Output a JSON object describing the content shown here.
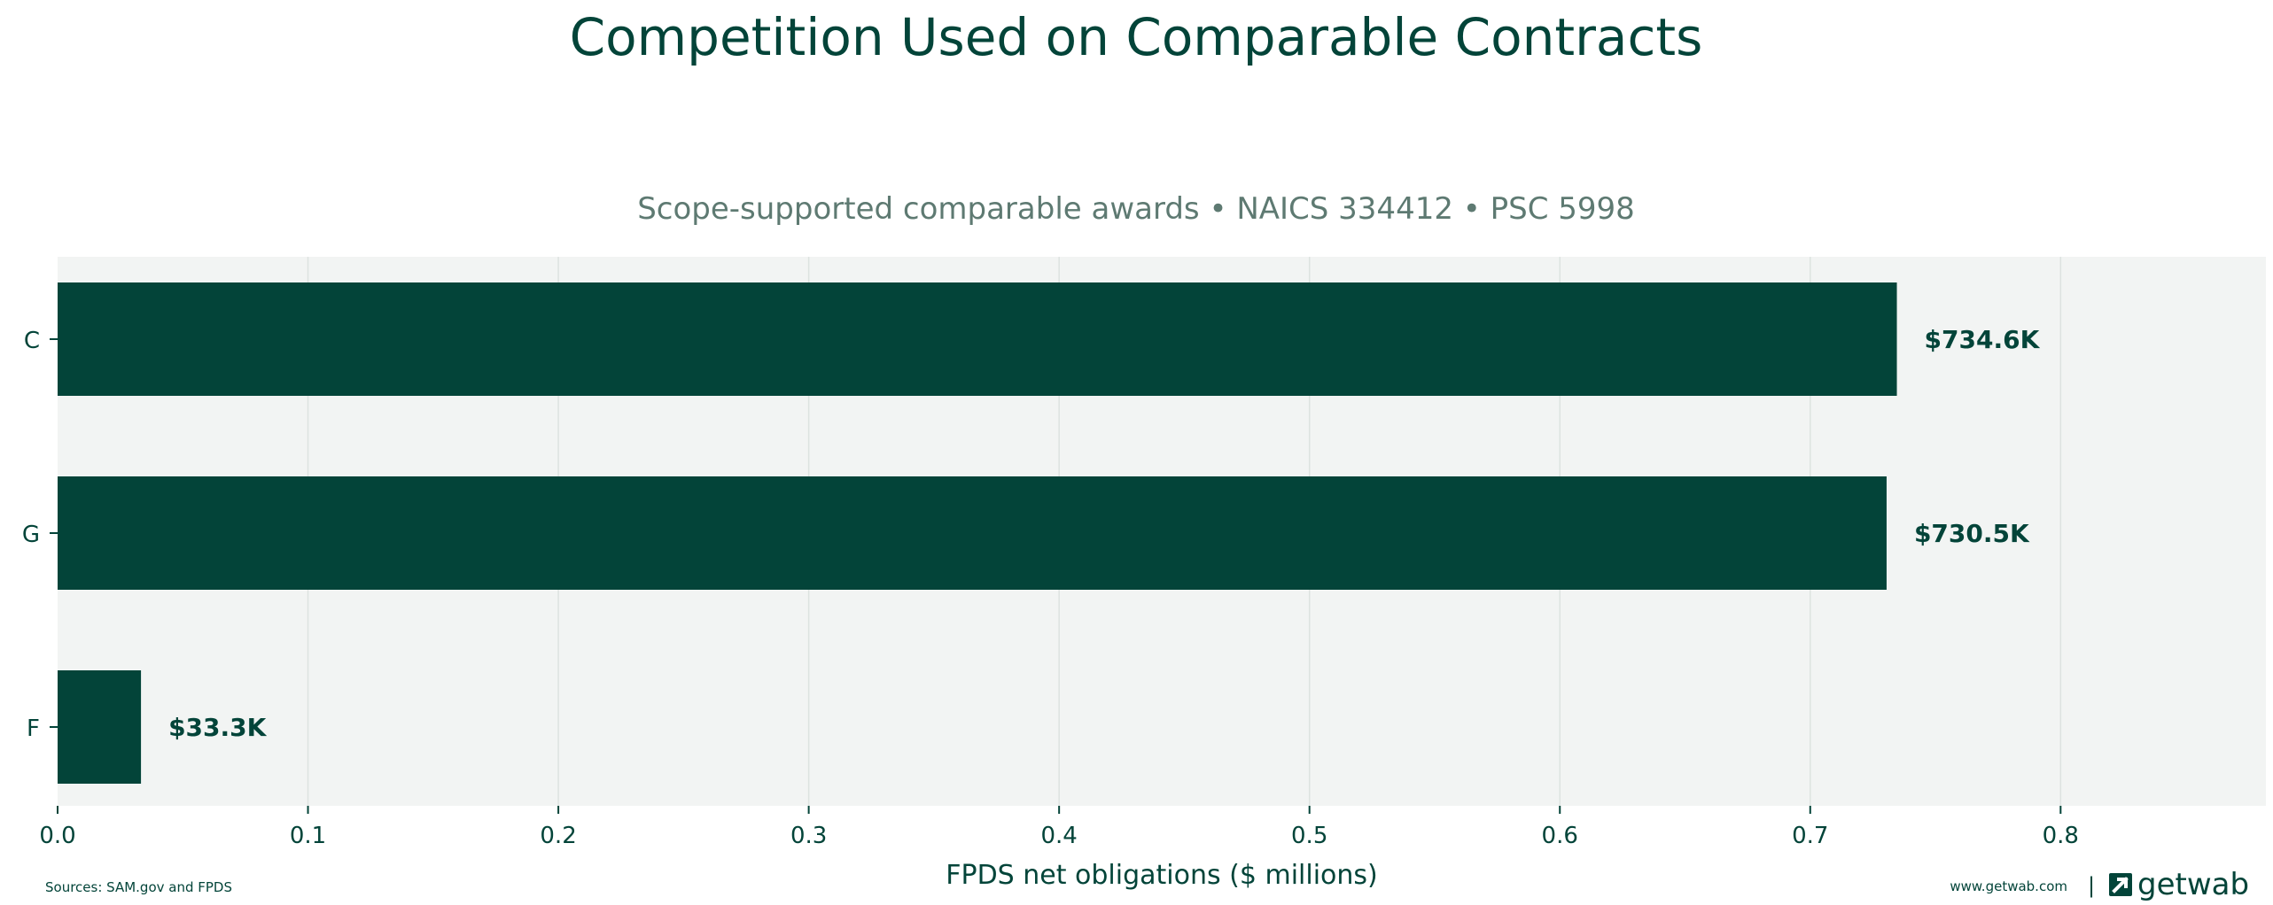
{
  "colors": {
    "bar": "#034439",
    "text": "#034439",
    "subtitle": "#5e7a72",
    "plot_bg": "#f2f4f3",
    "grid": "#dde3e0"
  },
  "footer": {
    "sources": "Sources: SAM.gov and FPDS",
    "website": "www.getwab.com",
    "separator": "|",
    "brand": "getwab",
    "logo_icon": "getwab-logo-icon"
  },
  "chart_data": {
    "type": "bar",
    "orientation": "horizontal",
    "title": "Competition Used on Comparable Contracts",
    "subtitle": "Scope-supported comparable awards • NAICS 334412 • PSC 5998",
    "xlabel": "FPDS net obligations ($ millions)",
    "ylabel": "",
    "categories": [
      "C",
      "G",
      "F"
    ],
    "values": [
      0.7346,
      0.7305,
      0.0333
    ],
    "data_labels": [
      "$734.6K",
      "$730.5K",
      "$33.3K"
    ],
    "xlim": [
      0,
      0.882
    ],
    "xticks": [
      0.0,
      0.1,
      0.2,
      0.3,
      0.4,
      0.5,
      0.6,
      0.7,
      0.8
    ],
    "xtick_labels": [
      "0.0",
      "0.1",
      "0.2",
      "0.3",
      "0.4",
      "0.5",
      "0.6",
      "0.7",
      "0.8"
    ],
    "grid": "vertical",
    "legend": "none"
  }
}
